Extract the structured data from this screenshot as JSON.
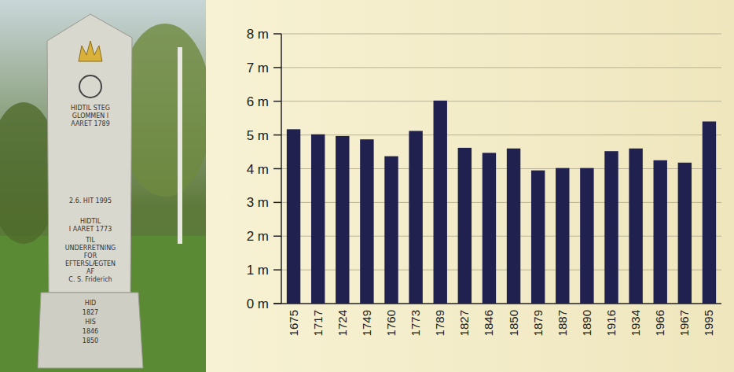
{
  "photo": {
    "inscriptions": [
      "HIDTIL STEG",
      "GLOMMEN I",
      "AARET 1789",
      "2.6. HIT 1995",
      "HIDTIL",
      "I AARET 1773",
      "TIL",
      "UNDERRETNING",
      "FOR",
      "EFTERSLÆGTEN",
      "AF",
      "C. S. Friderich",
      "HID",
      "1827",
      "HIS",
      "1846",
      "1850"
    ]
  },
  "chart_data": {
    "type": "bar",
    "categories": [
      "1675",
      "1717",
      "1724",
      "1749",
      "1760",
      "1773",
      "1789",
      "1827",
      "1846",
      "1850",
      "1879",
      "1887",
      "1890",
      "1916",
      "1934",
      "1966",
      "1967",
      "1995"
    ],
    "values": [
      5.17,
      5.02,
      4.97,
      4.87,
      4.37,
      5.12,
      6.02,
      4.62,
      4.47,
      4.6,
      3.95,
      4.02,
      4.02,
      4.52,
      4.6,
      4.25,
      4.18,
      5.4
    ],
    "color": "#20214f",
    "ylim": [
      0,
      8
    ],
    "yticks": [
      {
        "value": 0,
        "label": "0 m"
      },
      {
        "value": 1,
        "label": "1 m"
      },
      {
        "value": 2,
        "label": "2 m"
      },
      {
        "value": 3,
        "label": "3 m"
      },
      {
        "value": 4,
        "label": "4 m"
      },
      {
        "value": 5,
        "label": "5 m"
      },
      {
        "value": 6,
        "label": "6 m"
      },
      {
        "value": 7,
        "label": "7 m"
      },
      {
        "value": 8,
        "label": "8 m"
      }
    ],
    "grid": true
  }
}
